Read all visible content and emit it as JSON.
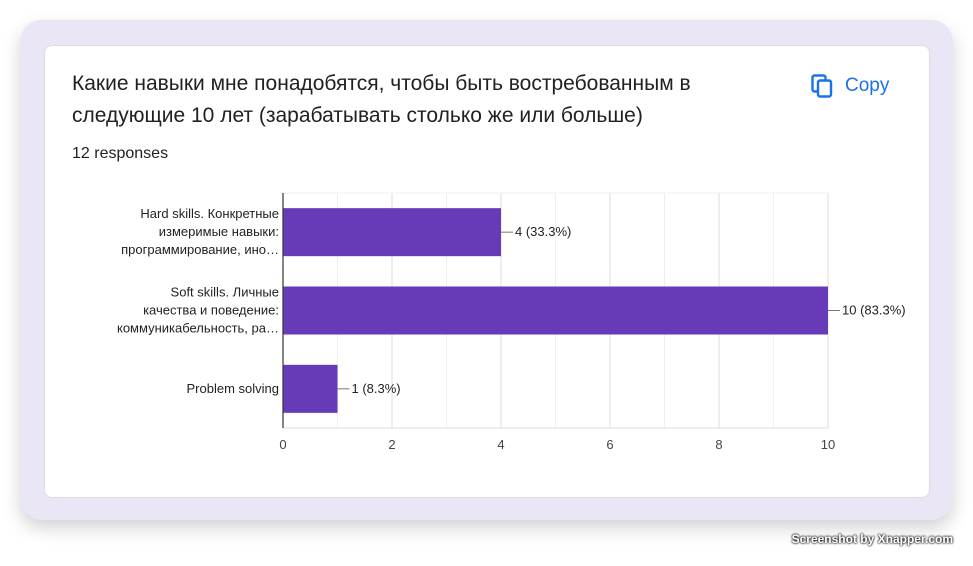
{
  "question": {
    "title": "Какие навыки мне понадобятся, чтобы быть востребованным в следующие 10 лет (зарабатывать столько же или больше)",
    "responses": "12 responses"
  },
  "actions": {
    "copy_label": "Copy",
    "copy_icon": "copy-icon"
  },
  "chart_data": {
    "type": "bar",
    "orientation": "horizontal",
    "categories": [
      [
        "Hard skills. Конкретные",
        "измеримые навыки:",
        "программирование, ино…"
      ],
      [
        "Soft skills. Личные",
        "качества и поведение:",
        "коммуникабельность, ра…"
      ],
      [
        "Problem solving"
      ]
    ],
    "values": [
      4,
      10,
      1
    ],
    "data_labels": [
      "4 (33.3%)",
      "10 (83.3%)",
      "1 (8.3%)"
    ],
    "xlim": [
      0,
      10
    ],
    "xticks": [
      0,
      2,
      4,
      6,
      8,
      10
    ],
    "grid": true,
    "bar_color": "#673ab7"
  },
  "watermark": "Screenshot by Xnapper.com"
}
